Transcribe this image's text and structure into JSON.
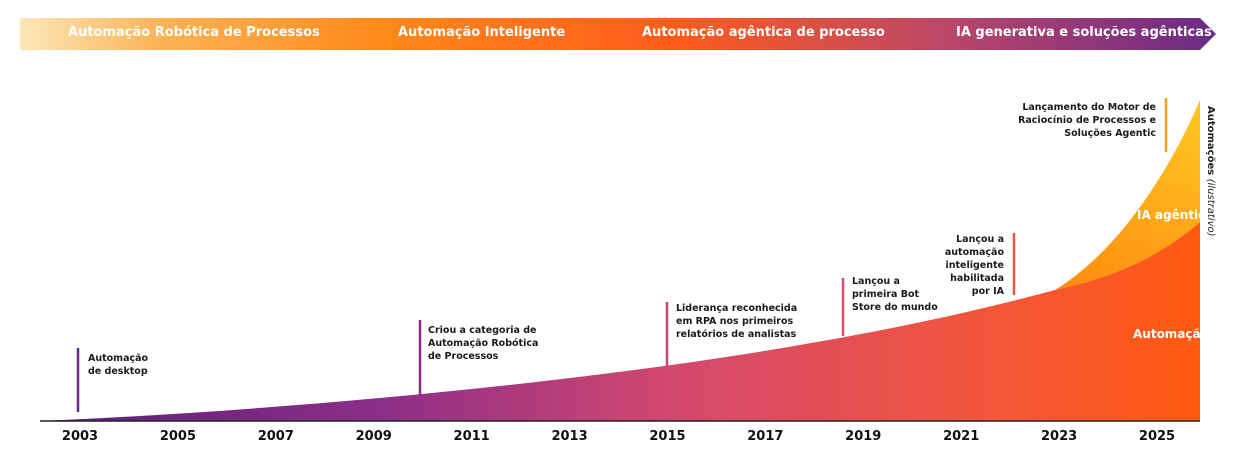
{
  "phases": [
    {
      "label": "Automação Robótica de Processos"
    },
    {
      "label": "Automação Inteligente"
    },
    {
      "label": "Automação agêntica de processo"
    },
    {
      "label": "IA generativa e soluções agênticas"
    }
  ],
  "chart_data": {
    "type": "area",
    "x_ticks": [
      "2003",
      "2005",
      "2007",
      "2009",
      "2011",
      "2013",
      "2015",
      "2017",
      "2019",
      "2021",
      "2023",
      "2025"
    ],
    "xlim": [
      2003,
      2025
    ],
    "ylabel_main": "Automações",
    "ylabel_note": "(ilustrativo)",
    "series": [
      {
        "name": "Automação",
        "color": "#ff5a14"
      },
      {
        "name": "IA agêntica",
        "color": "#ffb300"
      }
    ],
    "milestones": [
      {
        "year": 2003,
        "text": "Automação\nde desktop",
        "color": "#6b2a8a"
      },
      {
        "year": 2010,
        "text": "Criou a categoria de\nAutomação Robótica\nde Processos",
        "color": "#8a2f82"
      },
      {
        "year": 2015,
        "text": "Liderança reconhecida\nem RPA nos primeiros\nrelatórios de analistas",
        "color": "#c04a78"
      },
      {
        "year": 2018.6,
        "text": "Lançou a\nprimeira Bot\nStore do mundo",
        "color": "#d9506a"
      },
      {
        "year": 2022,
        "text": "Lançou a\nautomação\ninteligente\nhabilitada\npor IA",
        "color": "#e8553c"
      },
      {
        "year": 2024.5,
        "text": "Lançamento do Motor de\nRaciocínio de Processos e\nSoluções Agentic",
        "color": "#f0a020"
      }
    ]
  }
}
